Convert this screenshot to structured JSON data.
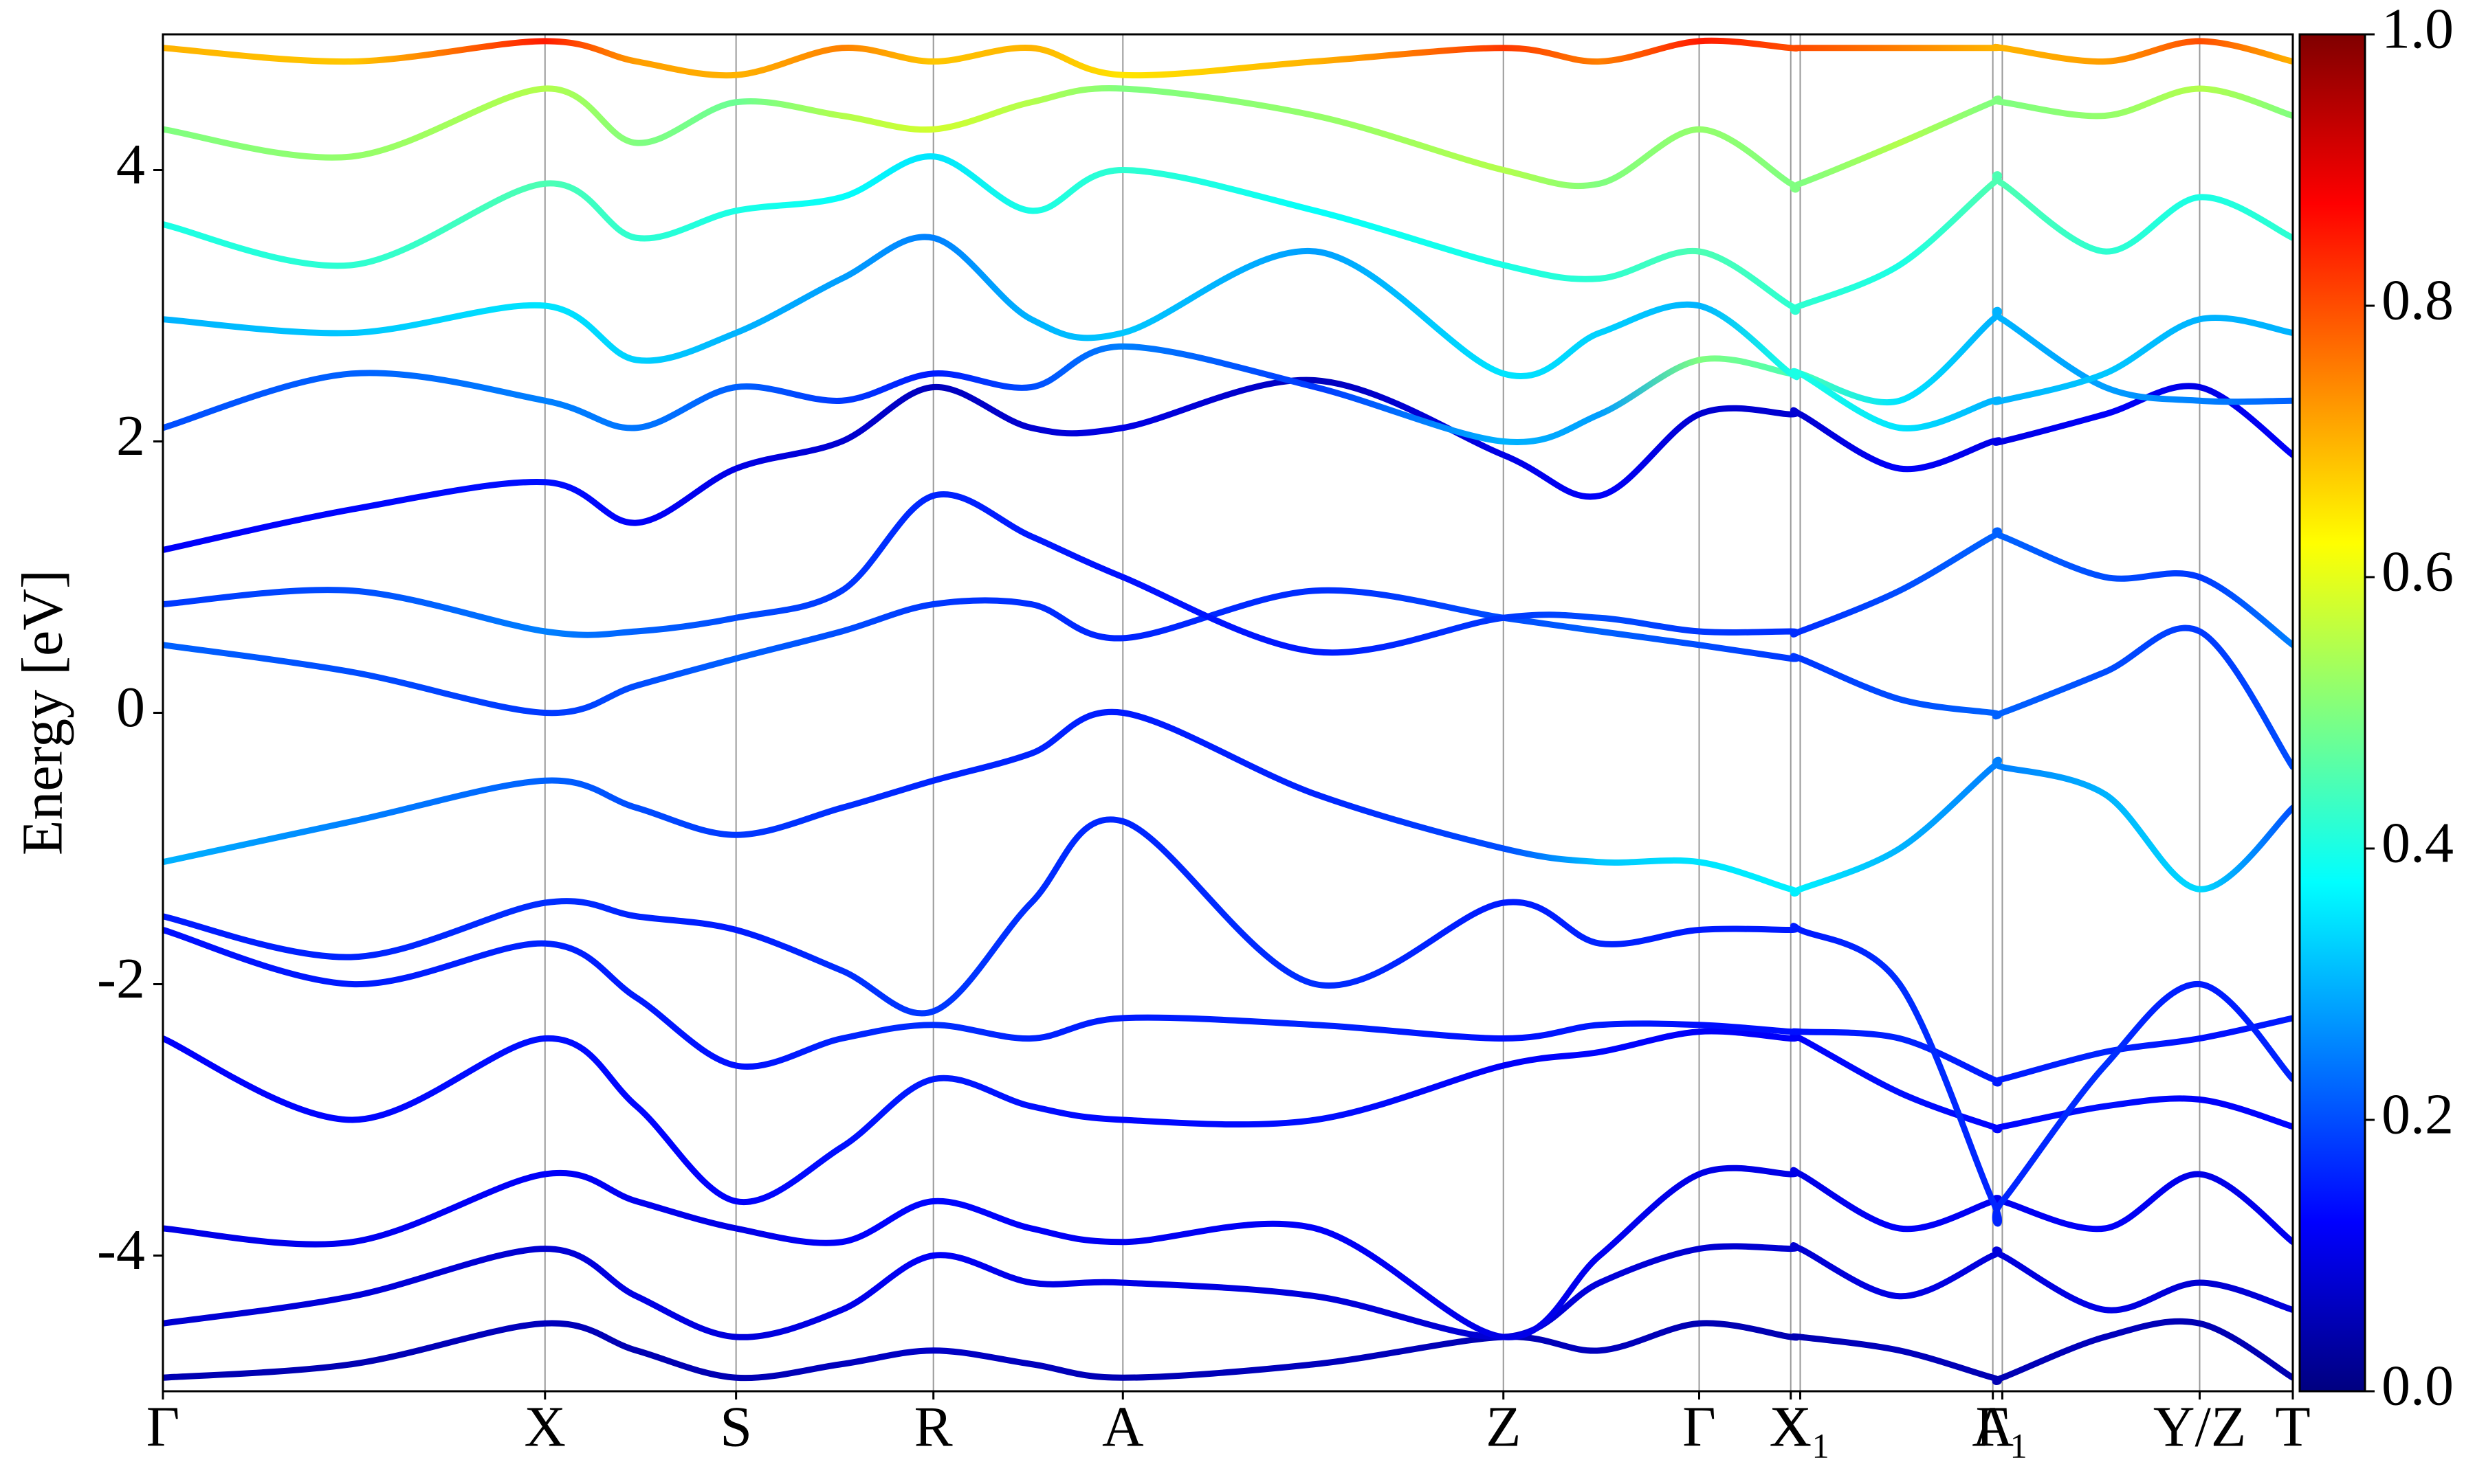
{
  "chart_data": {
    "type": "band-structure",
    "ylabel": "Energy [eV]",
    "xlim": [
      0,
      1349
    ],
    "ylim": [
      -5,
      5
    ],
    "yticks": [
      -4,
      -2,
      0,
      2,
      4
    ],
    "xticks": [
      {
        "value": 0,
        "label": "Γ"
      },
      {
        "value": 242,
        "label": "X"
      },
      {
        "value": 363,
        "label": "S"
      },
      {
        "value": 488,
        "label": "R"
      },
      {
        "value": 608,
        "label": "A"
      },
      {
        "value": 849,
        "label": "Z"
      },
      {
        "value": 973,
        "label": "Γ"
      },
      {
        "value": 1031,
        "label": "X"
      },
      {
        "value": 1037,
        "label": "X₁"
      },
      {
        "value": 1159,
        "label": "A"
      },
      {
        "value": 1165,
        "label": "Γ₁"
      },
      {
        "value": 1290,
        "label": "Y/Z"
      },
      {
        "value": 1349,
        "label": "T"
      }
    ],
    "colormap": "jet",
    "clim": [
      0,
      1
    ],
    "cticks": [
      {
        "value": 0,
        "label": "0.0"
      },
      0.2,
      0.4,
      0.6,
      0.8,
      {
        "value": 1,
        "label": "1.0"
      }
    ],
    "x": [
      0,
      120,
      242,
      300,
      363,
      430,
      488,
      550,
      608,
      730,
      849,
      910,
      973,
      1031,
      1037,
      1100,
      1159,
      1165,
      1230,
      1290,
      1349
    ],
    "series": [
      {
        "values": [
          -4.9,
          -4.8,
          -4.5,
          -4.7,
          -4.9,
          -4.8,
          -4.7,
          -4.8,
          -4.9,
          -4.8,
          -4.6,
          -4.7,
          -4.5,
          -4.6,
          -4.6,
          -4.7,
          -4.9,
          -4.9,
          -4.6,
          -4.5,
          -4.9
        ],
        "weights": [
          0.05,
          0.05,
          0.06,
          0.05,
          0.05,
          0.06,
          0.07,
          0.06,
          0.05,
          0.06,
          0.05,
          0.06,
          0.05,
          0.05,
          0.05,
          0.06,
          0.05,
          0.05,
          0.06,
          0.05,
          0.05
        ]
      },
      {
        "values": [
          -4.5,
          -4.3,
          -3.95,
          -4.3,
          -4.6,
          -4.4,
          -4.0,
          -4.2,
          -4.2,
          -4.3,
          -4.6,
          -4.2,
          -3.95,
          -3.95,
          -3.95,
          -4.3,
          -4.0,
          -4.0,
          -4.4,
          -4.2,
          -4.4
        ],
        "weights": [
          0.08,
          0.09,
          0.08,
          0.1,
          0.09,
          0.1,
          0.12,
          0.1,
          0.1,
          0.09,
          0.08,
          0.09,
          0.08,
          0.08,
          0.08,
          0.1,
          0.09,
          0.09,
          0.1,
          0.08,
          0.09
        ]
      },
      {
        "values": [
          -3.8,
          -3.9,
          -3.4,
          -3.6,
          -3.8,
          -3.9,
          -3.6,
          -3.8,
          -3.9,
          -3.8,
          -4.6,
          -4.0,
          -3.4,
          -3.4,
          -3.4,
          -3.8,
          -3.6,
          -3.6,
          -3.8,
          -3.4,
          -3.9
        ],
        "weights": [
          0.1,
          0.11,
          0.12,
          0.11,
          0.1,
          0.12,
          0.13,
          0.12,
          0.11,
          0.12,
          0.1,
          0.11,
          0.1,
          0.1,
          0.1,
          0.12,
          0.11,
          0.11,
          0.12,
          0.1,
          0.11
        ]
      },
      {
        "values": [
          -2.4,
          -3.0,
          -2.4,
          -2.9,
          -3.6,
          -3.2,
          -2.7,
          -2.9,
          -3.0,
          -3.0,
          -2.6,
          -2.5,
          -2.35,
          -2.4,
          -2.4,
          -2.8,
          -3.05,
          -3.05,
          -2.9,
          -2.85,
          -3.05
        ],
        "weights": [
          0.12,
          0.13,
          0.14,
          0.13,
          0.12,
          0.14,
          0.15,
          0.14,
          0.13,
          0.14,
          0.12,
          0.13,
          0.12,
          0.12,
          0.12,
          0.14,
          0.13,
          0.13,
          0.14,
          0.12,
          0.13
        ]
      },
      {
        "values": [
          -1.6,
          -2.0,
          -1.7,
          -2.1,
          -2.6,
          -2.4,
          -2.3,
          -2.4,
          -2.25,
          -2.3,
          -2.4,
          -2.3,
          -2.3,
          -2.35,
          -2.35,
          -2.4,
          -2.7,
          -2.7,
          -2.5,
          -2.4,
          -2.25
        ],
        "weights": [
          0.14,
          0.15,
          0.16,
          0.15,
          0.14,
          0.16,
          0.17,
          0.16,
          0.15,
          0.16,
          0.14,
          0.15,
          0.14,
          0.14,
          0.14,
          0.16,
          0.15,
          0.15,
          0.16,
          0.14,
          0.15
        ]
      },
      {
        "values": [
          -1.5,
          -1.8,
          -1.4,
          -1.5,
          -1.6,
          -1.9,
          -2.2,
          -1.4,
          -0.8,
          -2.0,
          -1.4,
          -1.7,
          -1.6,
          -1.6,
          -1.6,
          -2.0,
          -3.6,
          -3.6,
          -2.6,
          -2.0,
          -2.7
        ],
        "weights": [
          0.15,
          0.16,
          0.17,
          0.16,
          0.15,
          0.17,
          0.18,
          0.17,
          0.16,
          0.17,
          0.15,
          0.16,
          0.15,
          0.15,
          0.15,
          0.17,
          0.16,
          0.16,
          0.17,
          0.15,
          0.16
        ]
      },
      {
        "values": [
          -1.1,
          -0.8,
          -0.5,
          -0.7,
          -0.9,
          -0.7,
          -0.5,
          -0.3,
          0.0,
          -0.6,
          -1.0,
          -1.1,
          -1.1,
          -1.3,
          -1.3,
          -1.0,
          -0.4,
          -0.4,
          -0.6,
          -1.3,
          -0.7
        ],
        "weights": [
          0.3,
          0.25,
          0.22,
          0.2,
          0.18,
          0.17,
          0.16,
          0.16,
          0.15,
          0.16,
          0.2,
          0.32,
          0.35,
          0.36,
          0.36,
          0.3,
          0.25,
          0.25,
          0.3,
          0.34,
          0.2
        ]
      },
      {
        "values": [
          0.5,
          0.3,
          0.0,
          0.2,
          0.4,
          0.6,
          0.8,
          0.8,
          0.55,
          0.9,
          0.7,
          0.6,
          0.5,
          0.4,
          0.4,
          0.1,
          0.0,
          0.0,
          0.3,
          0.6,
          -0.4
        ],
        "weights": [
          0.22,
          0.2,
          0.18,
          0.2,
          0.22,
          0.2,
          0.18,
          0.17,
          0.16,
          0.17,
          0.2,
          0.22,
          0.2,
          0.18,
          0.18,
          0.2,
          0.22,
          0.22,
          0.2,
          0.18,
          0.2
        ]
      },
      {
        "values": [
          0.8,
          0.9,
          0.6,
          0.6,
          0.7,
          0.9,
          1.6,
          1.3,
          1.0,
          0.45,
          0.7,
          0.7,
          0.6,
          0.6,
          0.6,
          0.9,
          1.3,
          1.3,
          1.0,
          1.0,
          0.5
        ],
        "weights": [
          0.18,
          0.2,
          0.25,
          0.22,
          0.2,
          0.18,
          0.16,
          0.15,
          0.14,
          0.15,
          0.18,
          0.2,
          0.18,
          0.17,
          0.17,
          0.2,
          0.22,
          0.22,
          0.2,
          0.18,
          0.25
        ]
      },
      {
        "values": [
          1.2,
          1.5,
          1.7,
          1.4,
          1.8,
          2.0,
          2.4,
          2.1,
          2.1,
          2.45,
          1.9,
          1.6,
          2.2,
          2.2,
          2.2,
          1.8,
          2.0,
          2.0,
          2.2,
          2.4,
          1.9
        ],
        "weights": [
          0.12,
          0.13,
          0.14,
          0.12,
          0.1,
          0.08,
          0.06,
          0.08,
          0.1,
          0.06,
          0.1,
          0.12,
          0.08,
          0.08,
          0.08,
          0.12,
          0.1,
          0.1,
          0.12,
          0.1,
          0.12
        ]
      },
      {
        "values": [
          2.1,
          2.5,
          2.3,
          2.1,
          2.4,
          2.3,
          2.5,
          2.4,
          2.7,
          2.4,
          2.0,
          2.2,
          2.6,
          2.5,
          2.5,
          2.3,
          2.9,
          2.9,
          2.4,
          2.3,
          2.3
        ],
        "weights": [
          0.2,
          0.22,
          0.25,
          0.24,
          0.22,
          0.18,
          0.15,
          0.2,
          0.25,
          0.18,
          0.3,
          0.28,
          0.5,
          0.45,
          0.45,
          0.35,
          0.3,
          0.3,
          0.28,
          0.25,
          0.22
        ]
      },
      {
        "values": [
          2.9,
          2.8,
          3.0,
          2.6,
          2.8,
          3.2,
          3.5,
          2.9,
          2.8,
          3.4,
          2.5,
          2.8,
          3.0,
          2.5,
          2.5,
          2.1,
          2.3,
          2.3,
          2.5,
          2.9,
          2.8
        ],
        "weights": [
          0.3,
          0.32,
          0.35,
          0.33,
          0.3,
          0.28,
          0.25,
          0.3,
          0.32,
          0.28,
          0.35,
          0.33,
          0.3,
          0.4,
          0.4,
          0.35,
          0.3,
          0.3,
          0.32,
          0.3,
          0.3
        ]
      },
      {
        "values": [
          3.6,
          3.3,
          3.9,
          3.5,
          3.7,
          3.8,
          4.1,
          3.7,
          4.0,
          3.7,
          3.3,
          3.2,
          3.4,
          3.0,
          3.0,
          3.3,
          3.9,
          3.9,
          3.4,
          3.8,
          3.5
        ],
        "weights": [
          0.4,
          0.42,
          0.45,
          0.42,
          0.4,
          0.38,
          0.35,
          0.4,
          0.42,
          0.38,
          0.4,
          0.42,
          0.45,
          0.42,
          0.42,
          0.4,
          0.45,
          0.45,
          0.42,
          0.4,
          0.42
        ]
      },
      {
        "values": [
          4.3,
          4.1,
          4.6,
          4.2,
          4.5,
          4.4,
          4.3,
          4.5,
          4.6,
          4.4,
          4.0,
          3.9,
          4.3,
          3.9,
          3.9,
          4.2,
          4.5,
          4.5,
          4.4,
          4.6,
          4.4
        ],
        "weights": [
          0.5,
          0.52,
          0.55,
          0.5,
          0.48,
          0.55,
          0.58,
          0.55,
          0.5,
          0.52,
          0.55,
          0.5,
          0.52,
          0.5,
          0.5,
          0.55,
          0.5,
          0.5,
          0.52,
          0.55,
          0.5
        ]
      },
      {
        "values": [
          4.9,
          4.8,
          4.95,
          4.8,
          4.7,
          4.9,
          4.8,
          4.9,
          4.7,
          4.8,
          4.9,
          4.8,
          4.95,
          4.9,
          4.9,
          4.9,
          4.9,
          4.9,
          4.8,
          4.95,
          4.8
        ],
        "weights": [
          0.7,
          0.68,
          0.85,
          0.72,
          0.7,
          0.75,
          0.68,
          0.7,
          0.65,
          0.7,
          0.82,
          0.75,
          0.85,
          0.8,
          0.8,
          0.75,
          0.7,
          0.7,
          0.72,
          0.8,
          0.7
        ]
      }
    ]
  }
}
